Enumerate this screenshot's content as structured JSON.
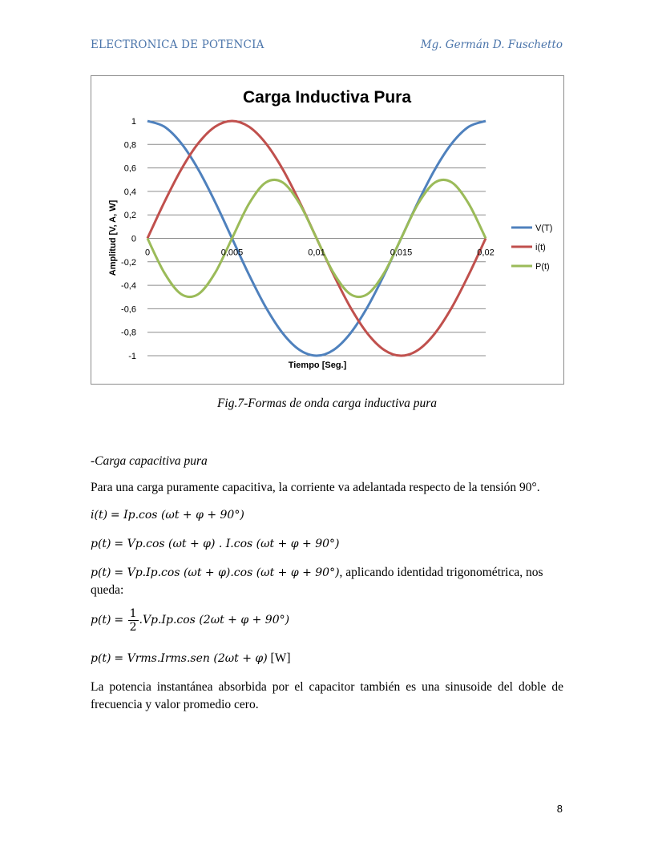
{
  "header": {
    "left": "ELECTRONICA DE POTENCIA",
    "right": "Mg. Germán D. Fuschetto"
  },
  "chart_data": {
    "type": "line",
    "title": "Carga Inductiva Pura",
    "xlabel": "Tiempo [Seg.]",
    "ylabel": "Amplitud [V, A, W]",
    "xlim": [
      0,
      0.02
    ],
    "ylim": [
      -1,
      1
    ],
    "grid": true,
    "legend": "right",
    "x_ticks": [
      "0",
      "0,005",
      "0,01",
      "0,015",
      "0,02"
    ],
    "y_ticks": [
      "1",
      "0,8",
      "0,6",
      "0,4",
      "0,2",
      "0",
      "-0,2",
      "-0,4",
      "-0,6",
      "-0,8",
      "-1"
    ],
    "x": [
      0,
      0.001,
      0.002,
      0.003,
      0.004,
      0.005,
      0.006,
      0.007,
      0.008,
      0.009,
      0.01,
      0.011,
      0.012,
      0.013,
      0.014,
      0.015,
      0.016,
      0.017,
      0.018,
      0.019,
      0.02
    ],
    "series": [
      {
        "name": "V(T)",
        "color": "#4f81bd",
        "values": [
          1,
          0.951,
          0.809,
          0.588,
          0.309,
          0,
          -0.309,
          -0.588,
          -0.809,
          -0.951,
          -1,
          -0.951,
          -0.809,
          -0.588,
          -0.309,
          0,
          0.309,
          0.588,
          0.809,
          0.951,
          1
        ]
      },
      {
        "name": "i(t)",
        "color": "#c0504d",
        "values": [
          0,
          0.309,
          0.588,
          0.809,
          0.951,
          1,
          0.951,
          0.809,
          0.588,
          0.309,
          0,
          -0.309,
          -0.588,
          -0.809,
          -0.951,
          -1,
          -0.951,
          -0.809,
          -0.588,
          -0.309,
          0
        ]
      },
      {
        "name": "P(t)",
        "color": "#9bbb59",
        "values": [
          0,
          -0.294,
          -0.476,
          -0.476,
          -0.294,
          0,
          0.294,
          0.476,
          0.476,
          0.294,
          0,
          -0.294,
          -0.476,
          -0.476,
          -0.294,
          0,
          0.294,
          0.476,
          0.476,
          0.294,
          0
        ]
      }
    ]
  },
  "caption": "Fig.7-Formas de onda carga inductiva pura",
  "section_title": "-Carga capacitiva pura",
  "para1": "Para una carga puramente capacitiva, la corriente va adelantada respecto de la tensión 90°.",
  "eq1": {
    "lhs": "i(t)",
    "rhs": "Ip.cos (ωt + φ + 90°)"
  },
  "eq2": {
    "lhs": "p(t)",
    "rhs": "Vp.cos (ωt + φ) . I.cos (ωt + φ + 90°)"
  },
  "eq3": {
    "lhs": "p(t)",
    "rhs": "Vp.Ip.cos (ωt + φ).cos (ωt + φ + 90°)",
    "tail": ", aplicando identidad trigonométrica, nos",
    "tail2": "queda:"
  },
  "eq4": {
    "lhs": "p(t)",
    "frac_num": "1",
    "frac_den": "2",
    "rhs": ".Vp.Ip.cos (2ωt + φ + 90°)"
  },
  "eq5": {
    "lhs": "p(t)",
    "rhs": "Vrms.Irms.sen (2ωt + φ)",
    "unit": "[W]"
  },
  "para2": "La potencia instantánea absorbida por el capacitor también es una sinusoide del doble de frecuencia y valor promedio cero.",
  "page_number": "8"
}
